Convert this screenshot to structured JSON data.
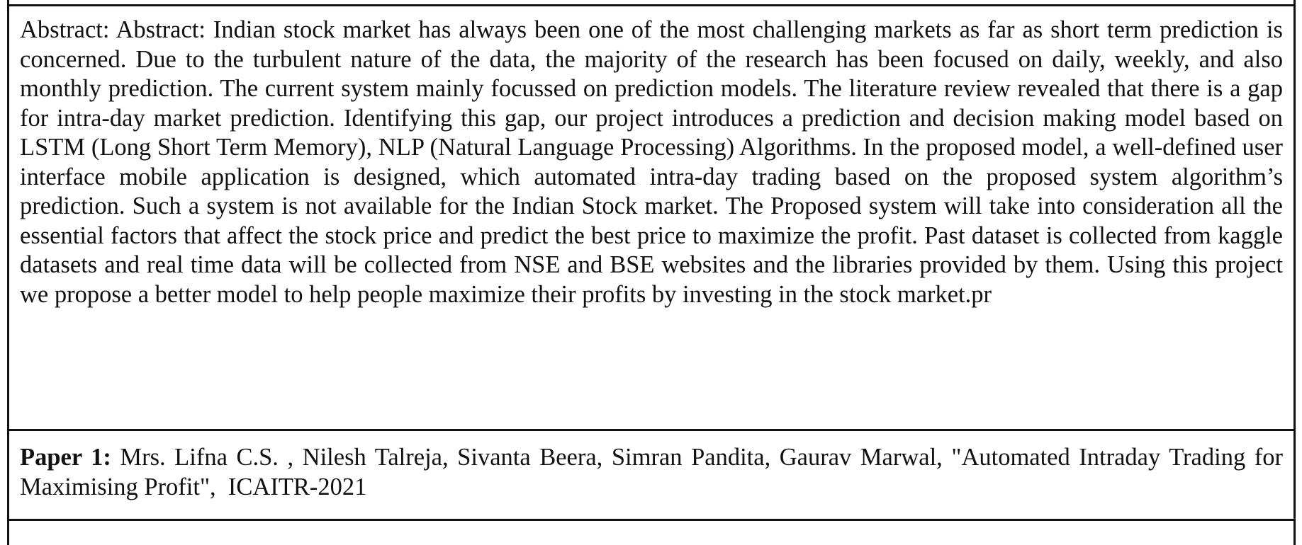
{
  "abstract": {
    "text": "Abstract: Abstract: Indian stock market has always been one of the most challenging markets as far as short term prediction is concerned. Due to the turbulent nature of the data, the majority of the research has been focused on daily, weekly, and also monthly prediction. The current system mainly focussed on prediction models. The literature review revealed that there is a gap for intra-day market prediction. Identifying this gap, our project introduces a prediction and decision making model based on LSTM (Long Short Term Memory), NLP (Natural Language Processing) Algorithms. In the proposed model, a well-defined user interface mobile application is designed, which automated intra-day trading based on the proposed system algorithm’s prediction. Such a system is not available for the Indian Stock market. The Proposed system will take into consideration all the essential factors that affect the stock price and predict the best price to maximize the profit. Past dataset is collected from kaggle datasets and real time data will be collected from NSE and BSE websites and the libraries provided by them. Using this project we propose a better model to help people maximize their profits by investing in the stock market.pr"
  },
  "paper": {
    "label": "Paper 1:",
    "citation": " Mrs. Lifna C.S. , Nilesh Talreja, Sivanta Beera, Simran Pandita, Gaurav Marwal, \"Automated Intraday Trading for Maximising Profit\",  ICAITR-2021"
  }
}
